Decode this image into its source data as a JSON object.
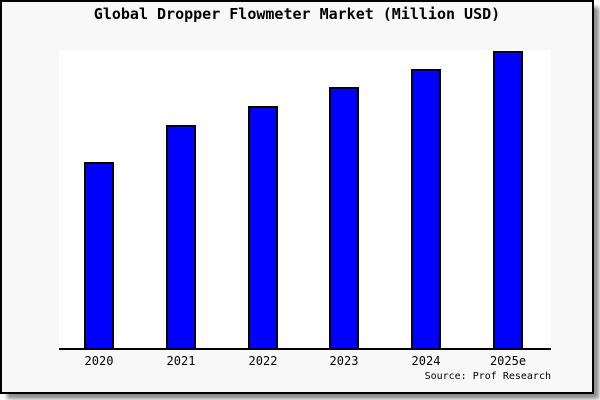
{
  "title": "Global Dropper Flowmeter Market (Million USD)",
  "source": "Source: Prof Research",
  "colors": {
    "figure_bg": "#f8f8f8",
    "plot_bg": "#ffffff",
    "bar_fill": "#0000ff",
    "bar_outline": "#000000",
    "axis": "#000000",
    "frame_border": "#000000",
    "text": "#000000"
  },
  "chart_data": {
    "type": "bar",
    "title": "Global Dropper Flowmeter Market (Million USD)",
    "categories": [
      "2020",
      "2021",
      "2022",
      "2023",
      "2024",
      "2025e"
    ],
    "values": [
      62.6,
      75.1,
      81.5,
      87.9,
      93.9,
      100
    ],
    "ylim": [
      0,
      100
    ],
    "units": "relative height, % of tallest bar (y-axis unlabeled in image)",
    "xlabel": "",
    "ylabel": "",
    "grid": false,
    "legend": "none",
    "annotation": "Source: Prof Research"
  }
}
